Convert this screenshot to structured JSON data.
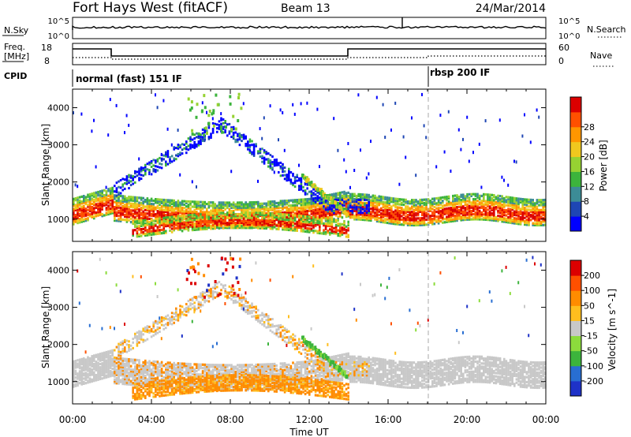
{
  "header": {
    "station": "Fort Hays West (fitACF)",
    "beam": "Beam 13",
    "date": "24/Mar/2014"
  },
  "noise_panel": {
    "left_label": "N.Sky",
    "right_label": "N.Search",
    "left_ticks": [
      "10^5",
      "10^0"
    ],
    "right_ticks": [
      "10^5",
      "10^0"
    ]
  },
  "freq_panel": {
    "left_label_1": "Freq.",
    "left_label_2": "[MHz]",
    "right_label": "Nave",
    "left_ticks": [
      "18",
      "8"
    ],
    "right_ticks": [
      "60",
      "0"
    ]
  },
  "cpid_panel": {
    "label": "CPID",
    "modes": [
      {
        "name": "normal (fast) 151 IF",
        "start_hour": 0,
        "end_hour": 18
      },
      {
        "name": "rbsp 200 IF",
        "start_hour": 18,
        "end_hour": 24
      }
    ]
  },
  "chart_data": [
    {
      "type": "heatmap",
      "title": "",
      "xlabel": "",
      "ylabel": "Slant Range [km]",
      "x_ticks": [
        "00:00",
        "04:00",
        "08:00",
        "12:00",
        "16:00",
        "20:00",
        "00:00"
      ],
      "xlim_hours": [
        0,
        24
      ],
      "y_ticks": [
        1000,
        2000,
        3000,
        4000
      ],
      "ylim": [
        400,
        4500
      ],
      "colorbar": {
        "label": "Power [dB]",
        "ticks": [
          "4",
          "8",
          "12",
          "16",
          "20",
          "24",
          "28"
        ],
        "colors": [
          "#0000ff",
          "#1e46b4",
          "#3c8c96",
          "#3cb43c",
          "#96d232",
          "#f0c81e",
          "#ff9600",
          "#ff5000",
          "#dc0000"
        ]
      },
      "echo_regions": [
        {
          "name": "lower band",
          "range_km": [
            1000,
            1700
          ],
          "hours": [
            0,
            24
          ]
        },
        {
          "name": "descending band",
          "range_km": [
            600,
            1500
          ],
          "hours": [
            2.5,
            13.5
          ]
        },
        {
          "name": "ionospheric band",
          "range_km": [
            1500,
            4400
          ],
          "hours": [
            2,
            15
          ]
        }
      ]
    },
    {
      "type": "heatmap",
      "title": "",
      "xlabel": "Time UT",
      "ylabel": "Slant Range [km]",
      "x_ticks": [
        "00:00",
        "04:00",
        "08:00",
        "12:00",
        "16:00",
        "20:00",
        "00:00"
      ],
      "xlim_hours": [
        0,
        24
      ],
      "y_ticks": [
        1000,
        2000,
        3000,
        4000
      ],
      "ylim": [
        400,
        4500
      ],
      "colorbar": {
        "label": "Velocity [m s^-1]",
        "ticks": [
          "200",
          "100",
          "50",
          "15",
          "-15",
          "-50",
          "-100",
          "-200"
        ],
        "colors": [
          "#1e32c8",
          "#286ed2",
          "#3cb43c",
          "#8cdc3c",
          "#c8c8c8",
          "#ffbe1e",
          "#ff8c00",
          "#ff5000",
          "#dc0000"
        ]
      }
    }
  ]
}
